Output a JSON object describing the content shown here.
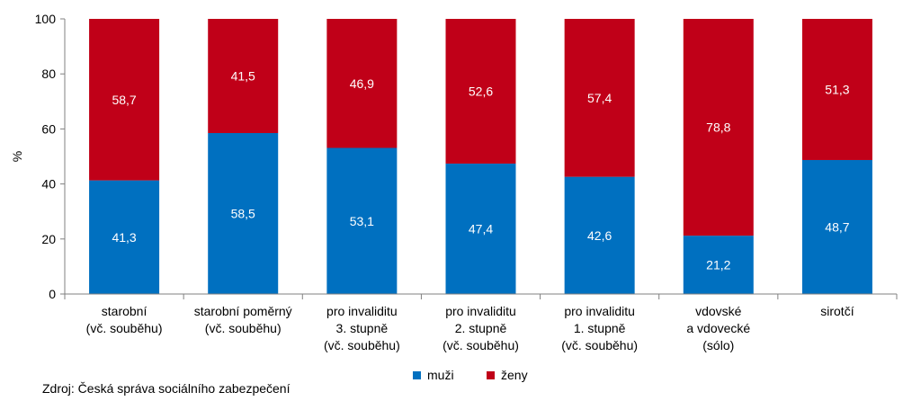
{
  "chart_data": {
    "type": "bar",
    "stacked": true,
    "percent": true,
    "categories": [
      [
        "starobní",
        "(vč. souběhu)"
      ],
      [
        "starobní poměrný",
        "(vč. souběhu)"
      ],
      [
        "pro invaliditu",
        "3. stupně",
        "(vč. souběhu)"
      ],
      [
        "pro invaliditu",
        "2. stupně",
        "(vč. souběhu)"
      ],
      [
        "pro invaliditu",
        "1. stupně",
        "(vč. souběhu)"
      ],
      [
        "vdovské",
        "a vdovecké",
        "(sólo)"
      ],
      [
        "sirotčí"
      ]
    ],
    "series": [
      {
        "name": "muži",
        "values": [
          41.3,
          58.5,
          53.1,
          47.4,
          42.6,
          21.2,
          48.7
        ],
        "labels": [
          "41,3",
          "58,5",
          "53,1",
          "47,4",
          "42,6",
          "21,2",
          "48,7"
        ]
      },
      {
        "name": "ženy",
        "values": [
          58.7,
          41.5,
          46.9,
          52.6,
          57.4,
          78.8,
          51.3
        ],
        "labels": [
          "58,7",
          "41,5",
          "46,9",
          "52,6",
          "57,4",
          "78,8",
          "51,3"
        ]
      }
    ],
    "ylabel": "%",
    "ylim": [
      0,
      100
    ],
    "yticks": [
      0,
      20,
      40,
      60,
      80,
      100
    ],
    "grid": false,
    "legend": "bottom"
  },
  "colors": {
    "muzi": "#0070C0",
    "zeny": "#C00018",
    "axis": "#808080",
    "label": "#ffffff"
  },
  "source": "Zdroj: Česká správa sociálního zabezpečení"
}
